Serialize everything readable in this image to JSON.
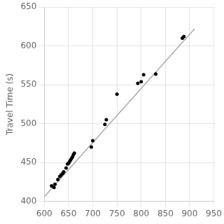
{
  "chart_data": {
    "type": "scatter",
    "ylabel": "Travel Time (s)",
    "series": [
      {
        "type": "scatter",
        "color": "#000000",
        "x": [
          615,
          620,
          622,
          628,
          632,
          635,
          638,
          640,
          645,
          648,
          650,
          652,
          654,
          656,
          658,
          660,
          662,
          697,
          700,
          725,
          728,
          750,
          793,
          800,
          805,
          830,
          885,
          888
        ],
        "values": [
          420,
          418,
          422,
          428,
          432,
          434,
          436,
          438,
          443,
          448,
          449,
          451,
          453,
          455,
          457,
          460,
          462,
          470,
          478,
          499,
          505,
          538,
          552,
          554,
          563,
          564,
          610,
          612
        ]
      },
      {
        "type": "line",
        "color": "#aaaaaa",
        "x": [
          600,
          910
        ],
        "values": [
          406,
          622
        ]
      }
    ],
    "xlim": [
      600,
      950
    ],
    "xticks": [
      600,
      650,
      700,
      750,
      800,
      850,
      900,
      950
    ],
    "ylim": [
      400,
      650
    ],
    "yticks": [
      400,
      450,
      500,
      550,
      600,
      650
    ],
    "grid": true
  }
}
